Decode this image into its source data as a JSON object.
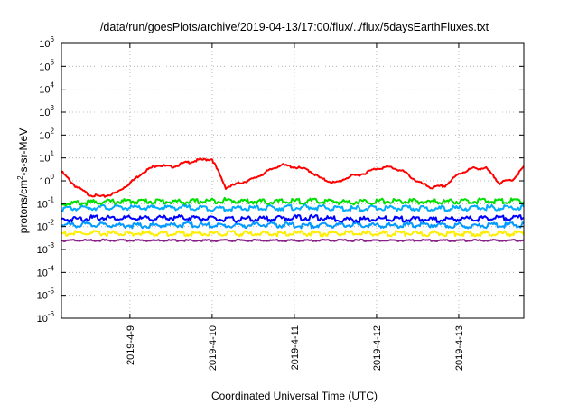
{
  "chart_data": {
    "type": "line",
    "title": "/data/run/goesPlots/archive/2019-04-13/17:00/flux/../flux/5daysEarthFluxes.txt",
    "xlabel": "Coordinated Universal Time (UTC)",
    "ylabel": {
      "pre": "protons/cm",
      "sup": "2",
      "post": "-s-sr-MeV"
    },
    "x_range": [
      "2019-04-08 04:00",
      "2019-04-13 19:00"
    ],
    "x_ticks": [
      "2019-4-9",
      "2019-4-10",
      "2019-4-11",
      "2019-4-12",
      "2019-4-13"
    ],
    "y_scale": "log",
    "ylim": [
      1e-06,
      1000000.0
    ],
    "y_ticks": [
      {
        "base": "10",
        "exp": "6"
      },
      {
        "base": "10",
        "exp": "5"
      },
      {
        "base": "10",
        "exp": "4"
      },
      {
        "base": "10",
        "exp": "3"
      },
      {
        "base": "10",
        "exp": "2"
      },
      {
        "base": "10",
        "exp": "1"
      },
      {
        "base": "10",
        "exp": "0"
      },
      {
        "base": "10",
        "exp": "-1"
      },
      {
        "base": "10",
        "exp": "-2"
      },
      {
        "base": "10",
        "exp": "-3"
      },
      {
        "base": "10",
        "exp": "-4"
      },
      {
        "base": "10",
        "exp": "-5"
      },
      {
        "base": "10",
        "exp": "-6"
      }
    ],
    "grid": true,
    "legend": "none",
    "series": [
      {
        "color": "#ff0000",
        "x": [
          "2019-04-08 04:00",
          "2019-04-08 08:00",
          "2019-04-08 12:00",
          "2019-04-08 16:00",
          "2019-04-08 20:00",
          "2019-04-09 00:00",
          "2019-04-09 04:00",
          "2019-04-09 08:00",
          "2019-04-09 12:00",
          "2019-04-09 16:00",
          "2019-04-09 20:00",
          "2019-04-10 00:00",
          "2019-04-10 04:00",
          "2019-04-10 08:00",
          "2019-04-10 12:00",
          "2019-04-10 16:00",
          "2019-04-10 20:00",
          "2019-04-11 00:00",
          "2019-04-11 04:00",
          "2019-04-11 08:00",
          "2019-04-11 12:00",
          "2019-04-11 16:00",
          "2019-04-11 20:00",
          "2019-04-12 00:00",
          "2019-04-12 04:00",
          "2019-04-12 08:00",
          "2019-04-12 12:00",
          "2019-04-12 16:00",
          "2019-04-12 20:00",
          "2019-04-13 00:00",
          "2019-04-13 04:00",
          "2019-04-13 08:00",
          "2019-04-13 12:00",
          "2019-04-13 16:00",
          "2019-04-13 19:00"
        ],
        "values": [
          2.5,
          0.6,
          0.25,
          0.2,
          0.3,
          0.8,
          2.5,
          5,
          4,
          6,
          8,
          9,
          0.5,
          0.8,
          1.2,
          2.5,
          5,
          4,
          3,
          1.2,
          0.8,
          1.5,
          2,
          3.5,
          4,
          2.5,
          0.9,
          0.5,
          0.6,
          2,
          3.5,
          3.5,
          0.8,
          1.2,
          4
        ]
      },
      {
        "color": "#00e000",
        "x": [
          "2019-04-08 04:00",
          "2019-04-08 16:00",
          "2019-04-09 04:00",
          "2019-04-09 16:00",
          "2019-04-10 04:00",
          "2019-04-10 16:00",
          "2019-04-11 04:00",
          "2019-04-11 16:00",
          "2019-04-12 04:00",
          "2019-04-12 16:00",
          "2019-04-13 04:00",
          "2019-04-13 19:00"
        ],
        "values": [
          0.1,
          0.12,
          0.13,
          0.12,
          0.14,
          0.12,
          0.13,
          0.12,
          0.13,
          0.12,
          0.13,
          0.13
        ]
      },
      {
        "color": "#00aaff",
        "x": [
          "2019-04-08 04:00",
          "2019-04-08 16:00",
          "2019-04-09 04:00",
          "2019-04-09 16:00",
          "2019-04-10 04:00",
          "2019-04-10 16:00",
          "2019-04-11 04:00",
          "2019-04-11 16:00",
          "2019-04-12 04:00",
          "2019-04-12 16:00",
          "2019-04-13 04:00",
          "2019-04-13 19:00"
        ],
        "values": [
          0.06,
          0.07,
          0.065,
          0.07,
          0.06,
          0.065,
          0.07,
          0.06,
          0.065,
          0.06,
          0.065,
          0.07
        ]
      },
      {
        "color": "#0000ff",
        "x": [
          "2019-04-08 04:00",
          "2019-04-08 16:00",
          "2019-04-09 04:00",
          "2019-04-09 16:00",
          "2019-04-10 04:00",
          "2019-04-10 16:00",
          "2019-04-11 04:00",
          "2019-04-11 16:00",
          "2019-04-12 04:00",
          "2019-04-12 16:00",
          "2019-04-13 04:00",
          "2019-04-13 19:00"
        ],
        "values": [
          0.02,
          0.025,
          0.022,
          0.025,
          0.02,
          0.022,
          0.025,
          0.02,
          0.022,
          0.02,
          0.022,
          0.025
        ]
      },
      {
        "color": "#0099ff",
        "x": [
          "2019-04-08 04:00",
          "2019-04-08 16:00",
          "2019-04-09 04:00",
          "2019-04-09 16:00",
          "2019-04-10 04:00",
          "2019-04-10 16:00",
          "2019-04-11 04:00",
          "2019-04-11 16:00",
          "2019-04-12 04:00",
          "2019-04-12 16:00",
          "2019-04-13 04:00",
          "2019-04-13 19:00"
        ],
        "values": [
          0.012,
          0.012,
          0.011,
          0.012,
          0.011,
          0.012,
          0.011,
          0.012,
          0.011,
          0.012,
          0.011,
          0.012
        ]
      },
      {
        "color": "#ffee00",
        "x": [
          "2019-04-08 04:00",
          "2019-04-08 16:00",
          "2019-04-09 04:00",
          "2019-04-09 16:00",
          "2019-04-10 04:00",
          "2019-04-10 16:00",
          "2019-04-11 04:00",
          "2019-04-11 16:00",
          "2019-04-12 04:00",
          "2019-04-12 16:00",
          "2019-04-13 04:00",
          "2019-04-13 19:00"
        ],
        "values": [
          0.005,
          0.005,
          0.005,
          0.005,
          0.005,
          0.005,
          0.005,
          0.005,
          0.005,
          0.005,
          0.005,
          0.005
        ]
      },
      {
        "color": "#882288",
        "x": [
          "2019-04-08 04:00",
          "2019-04-08 16:00",
          "2019-04-09 04:00",
          "2019-04-09 16:00",
          "2019-04-10 04:00",
          "2019-04-10 16:00",
          "2019-04-11 04:00",
          "2019-04-11 16:00",
          "2019-04-12 04:00",
          "2019-04-12 16:00",
          "2019-04-13 04:00",
          "2019-04-13 19:00"
        ],
        "values": [
          0.0025,
          0.0025,
          0.0025,
          0.0025,
          0.0025,
          0.0025,
          0.0025,
          0.0025,
          0.0025,
          0.0025,
          0.0025,
          0.0025
        ]
      }
    ]
  }
}
